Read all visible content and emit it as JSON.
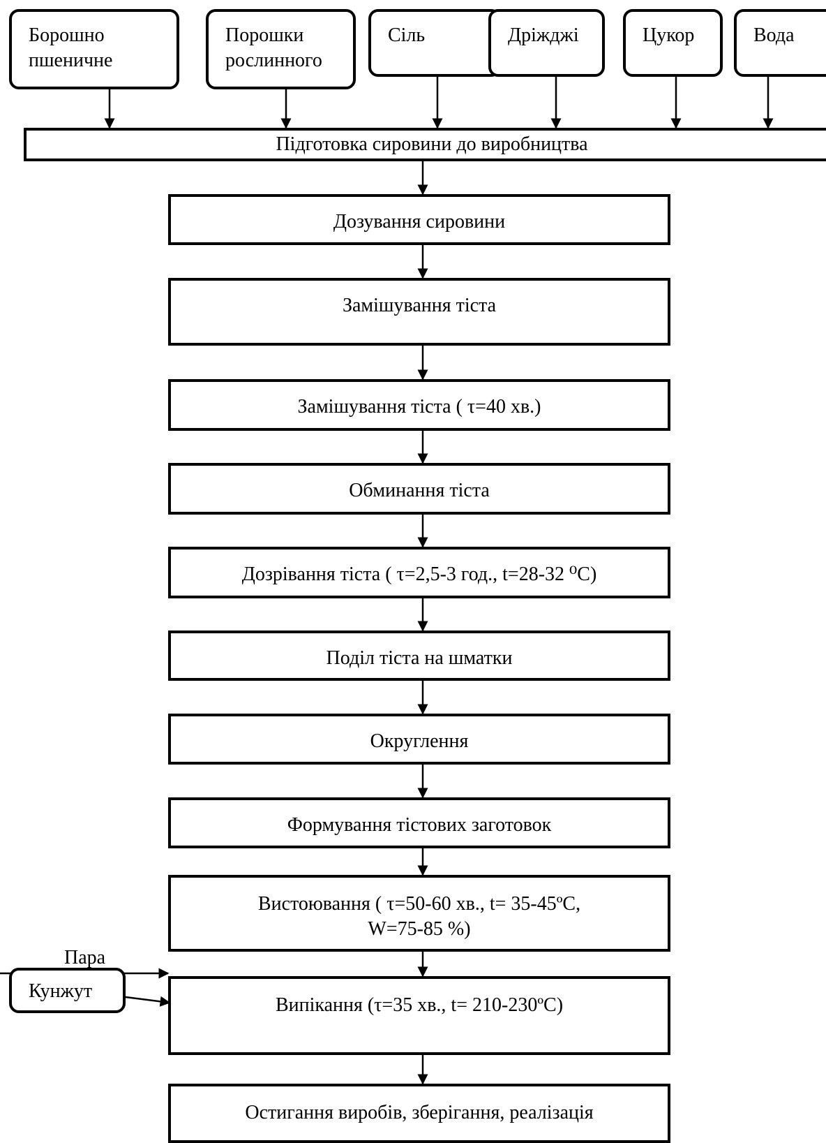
{
  "inputs": [
    {
      "l1": "Борошно",
      "l2": "пшеничне"
    },
    {
      "l1": "Порошки",
      "l2": "рослинного"
    },
    {
      "l1": "Сіль",
      "l2": ""
    },
    {
      "l1": "Дріжджі",
      "l2": ""
    },
    {
      "l1": "Цукор",
      "l2": ""
    },
    {
      "l1": "Вода",
      "l2": ""
    }
  ],
  "prep": "Підготовка сировини до виробництва",
  "steps": [
    {
      "l1": "Дозування сировини",
      "l2": ""
    },
    {
      "l1": "Замішування тіста",
      "l2": ""
    },
    {
      "l1": "Замішування тіста ( τ=40 хв.)",
      "l2": ""
    },
    {
      "l1": "Обминання тіста",
      "l2": ""
    },
    {
      "l1": "Дозрівання тіста ( τ=2,5-3 год., t=28-32 ⁰C)",
      "l2": ""
    },
    {
      "l1": "Поділ тіста на шматки",
      "l2": ""
    },
    {
      "l1": "Округлення",
      "l2": ""
    },
    {
      "l1": "Формування тістових заготовок",
      "l2": ""
    },
    {
      "l1": "Вистоювання ( τ=50-60 хв., t= 35-45ºC,",
      "l2": "W=75-85 %)"
    },
    {
      "l1": "Випікання (τ=35 хв., t= 210-230ºC)",
      "l2": ""
    },
    {
      "l1": "Остигання виробів, зберігання, реалізація",
      "l2": ""
    }
  ],
  "side": {
    "para": "Пара",
    "kunzhut": "Кунжут"
  }
}
